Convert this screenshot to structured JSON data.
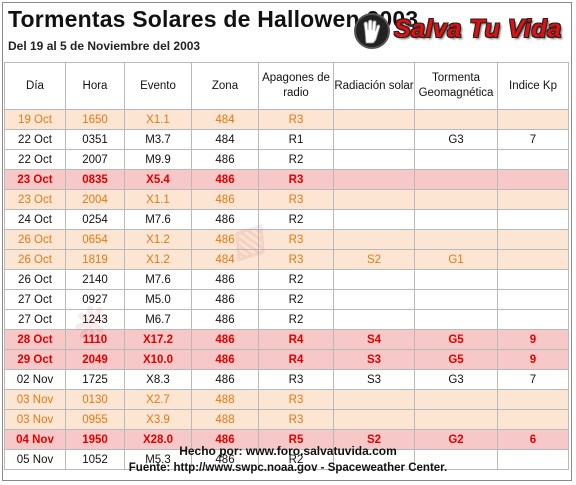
{
  "header": {
    "title": "Tormentas Solares de Hallowen 2003",
    "subtitle": "Del 19 al 5 de Noviembre del 2003",
    "logo_text": "Salva Tu Vida"
  },
  "table": {
    "columns": [
      "Día",
      "Hora",
      "Evento",
      "Zona",
      "Apagones de radio",
      "Radiación solar",
      "Tormenta Geomagnética",
      "Indice Kp"
    ],
    "rows": [
      {
        "style": "orange",
        "cells": [
          "19 Oct",
          "1650",
          "X1.1",
          "484",
          "R3",
          "",
          "",
          ""
        ]
      },
      {
        "style": "white",
        "cells": [
          "22 Oct",
          "0351",
          "M3.7",
          "484",
          "R1",
          "",
          "G3",
          "7"
        ]
      },
      {
        "style": "white",
        "cells": [
          "22 Oct",
          "2007",
          "M9.9",
          "486",
          "R2",
          "",
          "",
          ""
        ]
      },
      {
        "style": "red",
        "cells": [
          "23 Oct",
          "0835",
          "X5.4",
          "486",
          "R3",
          "",
          "",
          ""
        ]
      },
      {
        "style": "orange",
        "cells": [
          "23 Oct",
          "2004",
          "X1.1",
          "486",
          "R3",
          "",
          "",
          ""
        ]
      },
      {
        "style": "white",
        "cells": [
          "24 Oct",
          "0254",
          "M7.6",
          "486",
          "R2",
          "",
          "",
          ""
        ]
      },
      {
        "style": "orange",
        "cells": [
          "26 Oct",
          "0654",
          "X1.2",
          "486",
          "R3",
          "",
          "",
          ""
        ]
      },
      {
        "style": "orange",
        "cells": [
          "26 Oct",
          "1819",
          "X1.2",
          "484",
          "R3",
          "S2",
          "G1",
          ""
        ]
      },
      {
        "style": "white",
        "cells": [
          "26 Oct",
          "2140",
          "M7.6",
          "486",
          "R2",
          "",
          "",
          ""
        ]
      },
      {
        "style": "white",
        "cells": [
          "27 Oct",
          "0927",
          "M5.0",
          "486",
          "R2",
          "",
          "",
          ""
        ]
      },
      {
        "style": "white",
        "cells": [
          "27 Oct",
          "1243",
          "M6.7",
          "486",
          "R2",
          "",
          "",
          ""
        ]
      },
      {
        "style": "red",
        "cells": [
          "28 Oct",
          "1110",
          "X17.2",
          "486",
          "R4",
          "S4",
          "G5",
          "9"
        ]
      },
      {
        "style": "red",
        "cells": [
          "29 Oct",
          "2049",
          "X10.0",
          "486",
          "R4",
          "S3",
          "G5",
          "9"
        ]
      },
      {
        "style": "white",
        "cells": [
          "02 Nov",
          "1725",
          "X8.3",
          "486",
          "R3",
          "S3",
          "G3",
          "7"
        ]
      },
      {
        "style": "orange",
        "cells": [
          "03 Nov",
          "0130",
          "X2.7",
          "488",
          "R3",
          "",
          "",
          ""
        ]
      },
      {
        "style": "orange",
        "cells": [
          "03 Nov",
          "0955",
          "X3.9",
          "488",
          "R3",
          "",
          "",
          ""
        ]
      },
      {
        "style": "red",
        "cells": [
          "04 Nov",
          "1950",
          "X28.0",
          "486",
          "R5",
          "S2",
          "G2",
          "6"
        ]
      },
      {
        "style": "white",
        "cells": [
          "05 Nov",
          "1052",
          "M5.3",
          "486",
          "R2",
          "",
          "",
          ""
        ]
      }
    ]
  },
  "footer": {
    "made_by": "Hecho por: www.foro.salvatuvida.com",
    "source": "Fuente: http://www.swpc.noaa.gov - Spaceweather Center."
  },
  "colors": {
    "orange_row_bg": "#fde5d4",
    "orange_text": "#e07a10",
    "red_row_bg": "#f7c8c8",
    "red_text": "#e00000",
    "logo_red": "#e01010"
  }
}
